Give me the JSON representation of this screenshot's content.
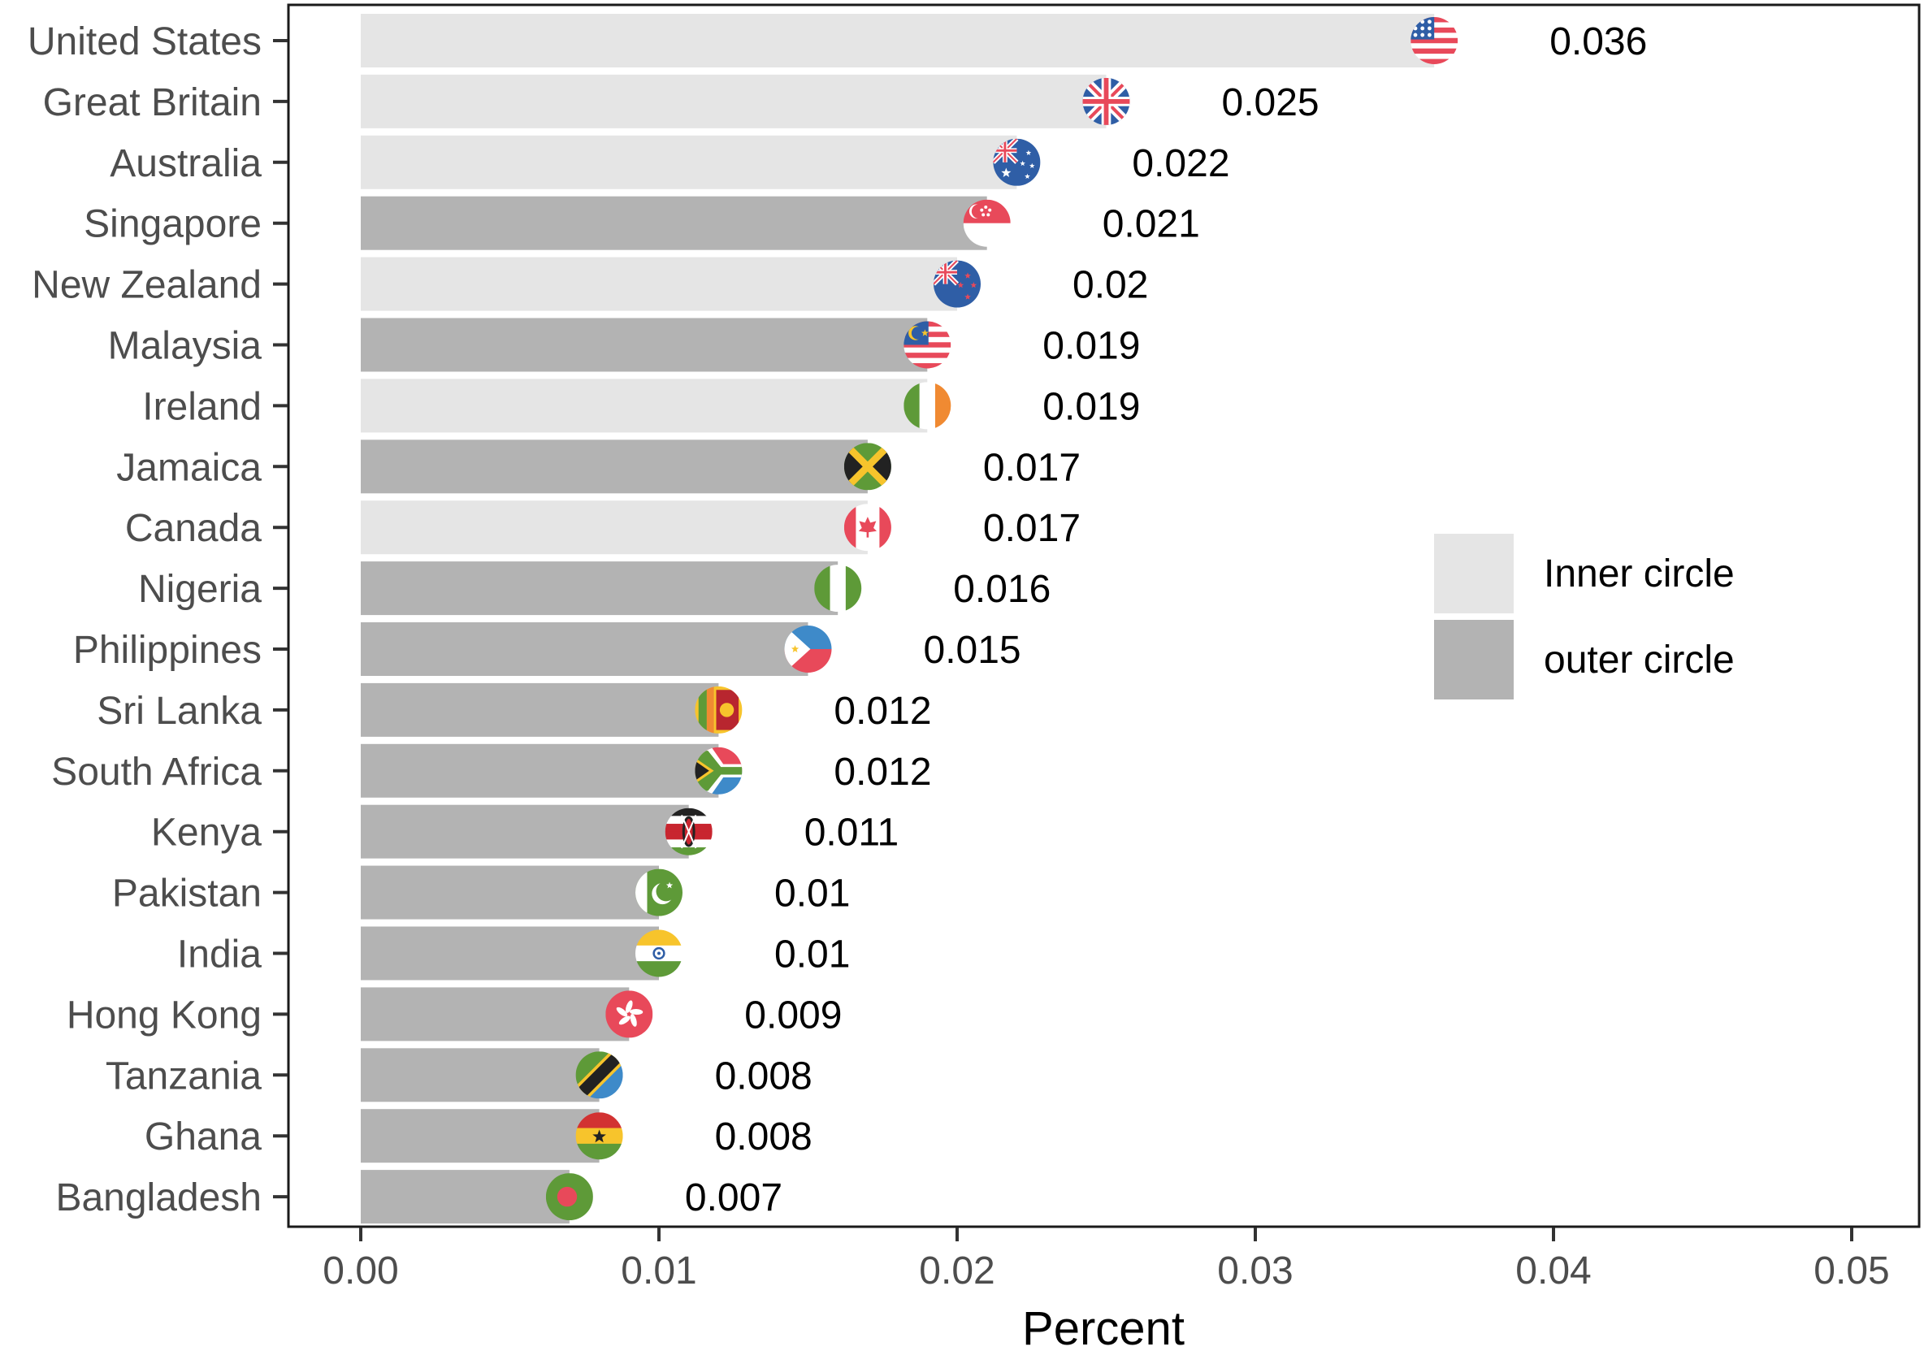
{
  "chart_data": {
    "type": "bar",
    "orientation": "horizontal",
    "title": "",
    "xlabel": "Percent",
    "ylabel": "",
    "xlim": [
      0,
      0.05
    ],
    "x_ticks": [
      "0.00",
      "0.01",
      "0.02",
      "0.03",
      "0.04",
      "0.05"
    ],
    "x_tick_values": [
      0,
      0.01,
      0.02,
      0.03,
      0.04,
      0.05
    ],
    "legend_position": "right",
    "legend": [
      {
        "name": "Inner circle",
        "color": "#e5e5e5"
      },
      {
        "name": "outer circle",
        "color": "#b3b3b3"
      }
    ],
    "bars": [
      {
        "country": "United States",
        "value": 0.036,
        "label": "0.036",
        "group": "Inner circle",
        "flag": "us-flag-icon"
      },
      {
        "country": "Great Britain",
        "value": 0.025,
        "label": "0.025",
        "group": "Inner circle",
        "flag": "gb-flag-icon"
      },
      {
        "country": "Australia",
        "value": 0.022,
        "label": "0.022",
        "group": "Inner circle",
        "flag": "au-flag-icon"
      },
      {
        "country": "Singapore",
        "value": 0.021,
        "label": "0.021",
        "group": "outer circle",
        "flag": "sg-flag-icon"
      },
      {
        "country": "New Zealand",
        "value": 0.02,
        "label": "0.02",
        "group": "Inner circle",
        "flag": "nz-flag-icon"
      },
      {
        "country": "Malaysia",
        "value": 0.019,
        "label": "0.019",
        "group": "outer circle",
        "flag": "my-flag-icon"
      },
      {
        "country": "Ireland",
        "value": 0.019,
        "label": "0.019",
        "group": "Inner circle",
        "flag": "ie-flag-icon"
      },
      {
        "country": "Jamaica",
        "value": 0.017,
        "label": "0.017",
        "group": "outer circle",
        "flag": "jm-flag-icon"
      },
      {
        "country": "Canada",
        "value": 0.017,
        "label": "0.017",
        "group": "Inner circle",
        "flag": "ca-flag-icon"
      },
      {
        "country": "Nigeria",
        "value": 0.016,
        "label": "0.016",
        "group": "outer circle",
        "flag": "ng-flag-icon"
      },
      {
        "country": "Philippines",
        "value": 0.015,
        "label": "0.015",
        "group": "outer circle",
        "flag": "ph-flag-icon"
      },
      {
        "country": "Sri Lanka",
        "value": 0.012,
        "label": "0.012",
        "group": "outer circle",
        "flag": "lk-flag-icon"
      },
      {
        "country": "South Africa",
        "value": 0.012,
        "label": "0.012",
        "group": "outer circle",
        "flag": "za-flag-icon"
      },
      {
        "country": "Kenya",
        "value": 0.011,
        "label": "0.011",
        "group": "outer circle",
        "flag": "ke-flag-icon"
      },
      {
        "country": "Pakistan",
        "value": 0.01,
        "label": "0.01",
        "group": "outer circle",
        "flag": "pk-flag-icon"
      },
      {
        "country": "India",
        "value": 0.01,
        "label": "0.01",
        "group": "outer circle",
        "flag": "in-flag-icon"
      },
      {
        "country": "Hong Kong",
        "value": 0.009,
        "label": "0.009",
        "group": "outer circle",
        "flag": "hk-flag-icon"
      },
      {
        "country": "Tanzania",
        "value": 0.008,
        "label": "0.008",
        "group": "outer circle",
        "flag": "tz-flag-icon"
      },
      {
        "country": "Ghana",
        "value": 0.008,
        "label": "0.008",
        "group": "outer circle",
        "flag": "gh-flag-icon"
      },
      {
        "country": "Bangladesh",
        "value": 0.007,
        "label": "0.007",
        "group": "outer circle",
        "flag": "bd-flag-icon"
      }
    ]
  },
  "colors": {
    "inner": "#e5e5e5",
    "outer": "#b3b3b3",
    "red": "#e8495a",
    "blue": "#2f5ea6",
    "lightblue": "#3e8ac9",
    "green": "#5e9a38",
    "orange": "#f08a32",
    "yellow": "#f7c42c",
    "black": "#222222",
    "white": "#ffffff"
  }
}
